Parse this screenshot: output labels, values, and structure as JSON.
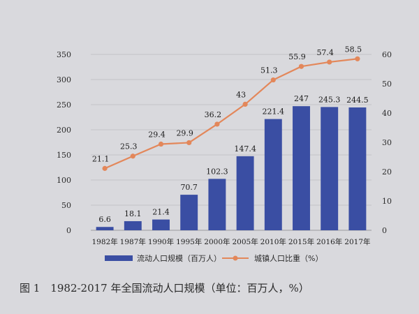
{
  "caption": "图 1　1982-2017 年全国流动人口规模（单位：百万人，%）",
  "chart_data": {
    "type": "bar+line",
    "categories": [
      "1982年",
      "1987年",
      "1990年",
      "1995年",
      "2000年",
      "2005年",
      "2010年",
      "2015年",
      "2016年",
      "2017年"
    ],
    "bar_series": {
      "name": "流动人口规模（百万人）",
      "values": [
        6.6,
        18.1,
        21.4,
        70.7,
        102.3,
        147.4,
        221.4,
        247,
        245.3,
        244.5
      ],
      "labels": [
        "6.6",
        "18.1",
        "21.4",
        "70.7",
        "102.3",
        "147.4",
        "221.4",
        "247",
        "245.3",
        "244.5"
      ],
      "color": "#3a4ea3",
      "axis": "left"
    },
    "line_series": {
      "name": "城镇人口比重（%）",
      "values": [
        21.1,
        25.3,
        29.4,
        29.9,
        36.2,
        43,
        51.3,
        55.9,
        57.4,
        58.5
      ],
      "labels": [
        "21.1",
        "25.3",
        "29.4",
        "29.9",
        "36.2",
        "43",
        "51.3",
        "55.9",
        "57.4",
        "58.5"
      ],
      "color": "#e3875a",
      "axis": "right"
    },
    "y_left": {
      "ylim": [
        0,
        350
      ],
      "ticks": [
        "0",
        "50",
        "100",
        "150",
        "200",
        "250",
        "300",
        "350"
      ]
    },
    "y_right": {
      "ylim": [
        0,
        60
      ],
      "ticks": [
        "0",
        "10",
        "20",
        "30",
        "40",
        "50",
        "60"
      ]
    },
    "grid": true,
    "legend_position": "bottom"
  }
}
